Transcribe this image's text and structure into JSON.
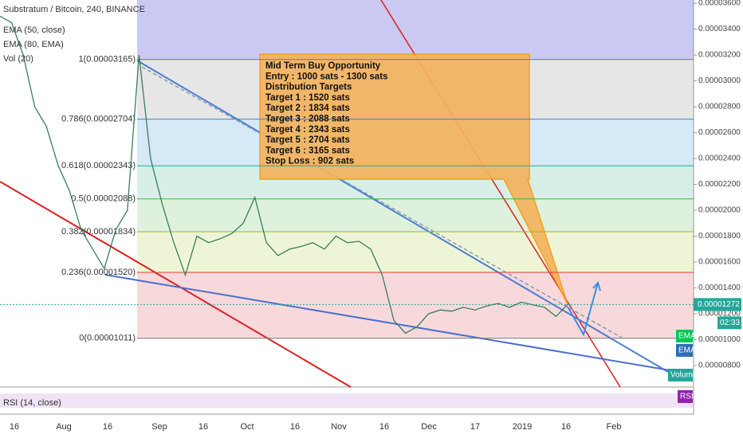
{
  "chart_data": {
    "type": "line",
    "title": "Substratum / Bitcoin, 240, BINANCE",
    "indicators": [
      "EMA (50, close)",
      "EMA (80, EMA)",
      "Vol (20)"
    ],
    "rsi_label": "RSI (14, close)",
    "ylim": [
      6.34e-06,
      3.625e-05
    ],
    "yticks": [
      {
        "value": 3.6e-05,
        "label": "0.00003600"
      },
      {
        "value": 3.4e-05,
        "label": "0.00003400"
      },
      {
        "value": 3.2e-05,
        "label": "0.00003200"
      },
      {
        "value": 3e-05,
        "label": "0.00003000"
      },
      {
        "value": 2.8e-05,
        "label": "0.00002800"
      },
      {
        "value": 2.6e-05,
        "label": "0.00002600"
      },
      {
        "value": 2.4e-05,
        "label": "0.00002400"
      },
      {
        "value": 2.2e-05,
        "label": "0.00002200"
      },
      {
        "value": 2e-05,
        "label": "0.00002000"
      },
      {
        "value": 1.8e-05,
        "label": "0.00001800"
      },
      {
        "value": 1.6e-05,
        "label": "0.00001600"
      },
      {
        "value": 1.4e-05,
        "label": "0.00001400"
      },
      {
        "value": 1.2e-05,
        "label": "0.00001200"
      },
      {
        "value": 1e-05,
        "label": "0.00001000"
      },
      {
        "value": 8e-06,
        "label": "0.00000800"
      }
    ],
    "time_labels": [
      "16",
      "Aug",
      "16",
      "Sep",
      "16",
      "Oct",
      "16",
      "Nov",
      "16",
      "Dec",
      "17",
      "2019",
      "16",
      "Feb"
    ],
    "series": [
      {
        "color": "#3a7d5c",
        "values": [
          3.5e-05,
          3.45e-05,
          3.2e-05,
          2.8e-05,
          2.65e-05,
          2.35e-05,
          2.15e-05,
          1.85e-05,
          1.7e-05,
          1.55e-05,
          1.85e-05,
          2e-05,
          3.2e-05,
          2.4e-05,
          2.05e-05,
          1.75e-05,
          1.5e-05,
          1.8e-05,
          1.75e-05,
          1.78e-05,
          1.82e-05,
          1.9e-05,
          2.1e-05,
          1.75e-05,
          1.65e-05,
          1.7e-05,
          1.72e-05,
          1.75e-05,
          1.7e-05,
          1.8e-05,
          1.75e-05,
          1.76e-05,
          1.7e-05,
          1.5e-05,
          1.15e-05,
          1.05e-05,
          1.1e-05,
          1.2e-05,
          1.23e-05,
          1.22e-05,
          1.25e-05,
          1.23e-05,
          1.26e-05,
          1.28e-05,
          1.25e-05,
          1.29e-05,
          1.27e-05,
          1.25e-05,
          1.18e-05,
          1.272e-05
        ]
      }
    ],
    "fib_levels": [
      {
        "value": 3.165e-05,
        "label": "1(0.00003165)",
        "color": "#787878"
      },
      {
        "value": 2.704e-05,
        "label": "0.786(0.00002704)",
        "color": "#3d85c6"
      },
      {
        "value": 2.343e-05,
        "label": "0.618(0.00002343)",
        "color": "#26a69a"
      },
      {
        "value": 2.088e-05,
        "label": "0.5(0.00002088)",
        "color": "#4caf50"
      },
      {
        "value": 1.834e-05,
        "label": "0.382(0.00001834)",
        "color": "#9bb82b"
      },
      {
        "value": 1.52e-05,
        "label": "0.236(0.00001520)",
        "color": "#e53935"
      },
      {
        "value": 1.011e-05,
        "label": "0(0.00001011)",
        "color": "#787878"
      }
    ],
    "annotation": [
      "Mid Term Buy Opportunity",
      "Entry : 1000 sats - 1300 sats",
      "Distribution Targets",
      "Target 1 : 1520 sats",
      "Target 2 : 1834 sats",
      "Target 3 : 2088 sats",
      "Target 4 : 2343 sats",
      "Target 5 : 2704 sats",
      "Target 6 : 3165 sats",
      "Stop Loss : 902 sats"
    ],
    "last_price": {
      "value": 1.272e-05,
      "label": "0.00001272"
    },
    "countdown": "02:33",
    "badges": [
      "EMA",
      "EMA",
      "Volume",
      "RSI"
    ]
  }
}
